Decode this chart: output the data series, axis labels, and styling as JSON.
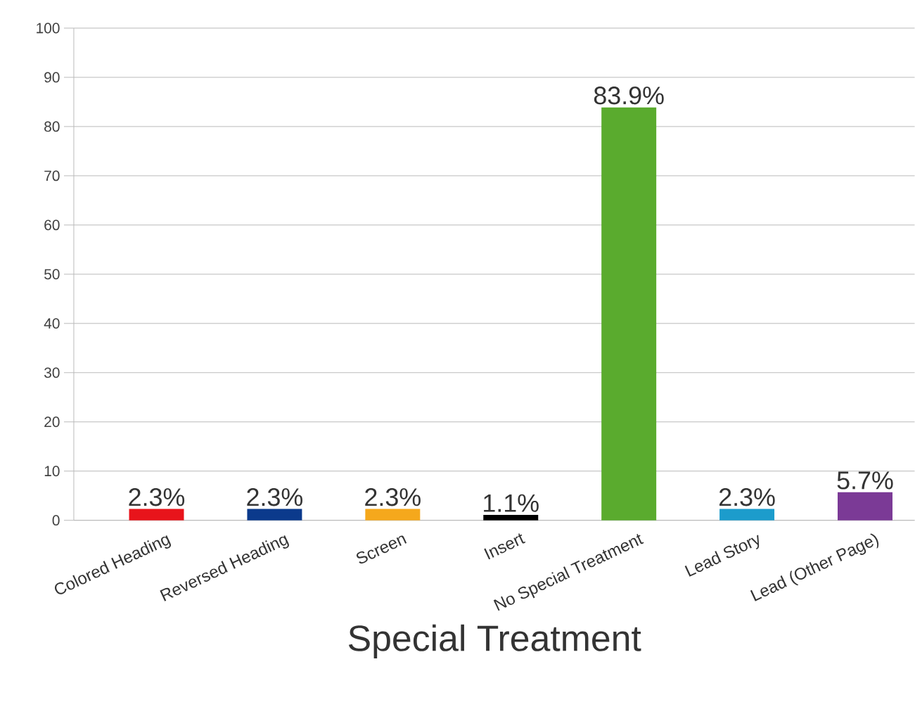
{
  "chart_data": {
    "type": "bar",
    "xlabel": "Special Treatment",
    "categories": [
      "Colored Heading",
      "Reversed Heading",
      "Screen",
      "Insert",
      "No Special Treatment",
      "Lead Story",
      "Lead (Other Page)"
    ],
    "values": [
      2.3,
      2.3,
      2.3,
      1.1,
      83.9,
      2.3,
      5.7
    ],
    "value_labels": [
      "2.3%",
      "2.3%",
      "2.3%",
      "1.1%",
      "83.9%",
      "2.3%",
      "5.7%"
    ],
    "colors": [
      "#e8141b",
      "#0b3a8c",
      "#f5a81c",
      "#000000",
      "#5aab2e",
      "#1c9ccc",
      "#7b3a96"
    ],
    "ylim": [
      0,
      100
    ],
    "yticks": [
      0,
      10,
      20,
      30,
      40,
      50,
      60,
      70,
      80,
      90,
      100
    ],
    "grid": "y"
  }
}
